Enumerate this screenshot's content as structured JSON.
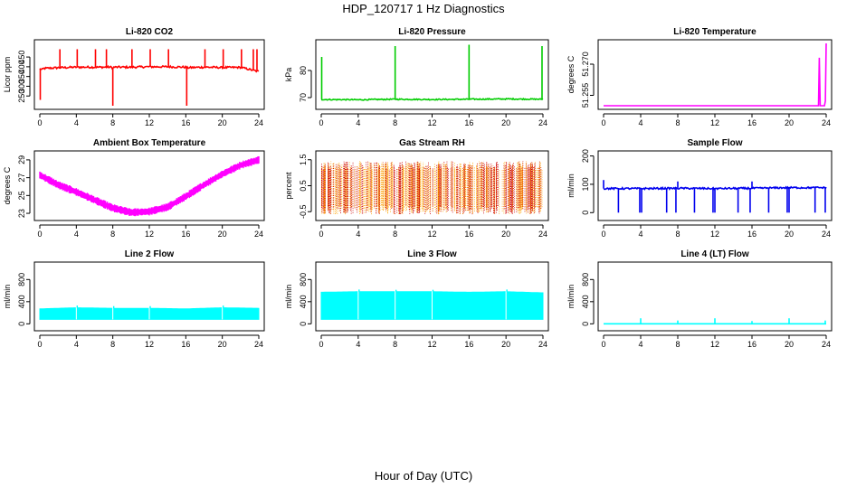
{
  "figure": {
    "title": "HDP_120717  1 Hz Diagnostics",
    "xlabel": "Hour of Day (UTC)"
  },
  "chart_data": [
    {
      "id": "co2",
      "type": "line",
      "title": "Li-820 CO2",
      "ylabel": "Licor ppm",
      "color": "#ff0000",
      "xlim": [
        0,
        24
      ],
      "xticks": [
        0,
        4,
        8,
        12,
        16,
        20,
        24
      ],
      "ylim": [
        200,
        520
      ],
      "yticks": [
        250,
        300,
        350,
        400,
        450
      ],
      "yticklabels": [
        "250",
        "300",
        "350",
        "400",
        "450"
      ],
      "pattern": "noisy",
      "series": [
        {
          "name": "CO2",
          "x": [
            0,
            0.2,
            0.5,
            2,
            4,
            6,
            7.9,
            8,
            8.1,
            10,
            12,
            14,
            16,
            16.1,
            18,
            20,
            22,
            24
          ],
          "y": [
            390,
            385,
            392,
            395,
            398,
            398,
            398,
            390,
            398,
            398,
            400,
            400,
            398,
            395,
            398,
            396,
            397,
            375
          ]
        }
      ],
      "spikes": [
        {
          "x": 0.05,
          "y": 230
        },
        {
          "x": 2.2,
          "y": 490
        },
        {
          "x": 4.1,
          "y": 490
        },
        {
          "x": 6.1,
          "y": 490
        },
        {
          "x": 7.3,
          "y": 490
        },
        {
          "x": 8.0,
          "y": 200
        },
        {
          "x": 10.1,
          "y": 490
        },
        {
          "x": 12.1,
          "y": 490
        },
        {
          "x": 14.1,
          "y": 490
        },
        {
          "x": 16.1,
          "y": 200
        },
        {
          "x": 18.1,
          "y": 490
        },
        {
          "x": 20.1,
          "y": 490
        },
        {
          "x": 22.1,
          "y": 490
        },
        {
          "x": 23.4,
          "y": 490
        },
        {
          "x": 23.8,
          "y": 490
        }
      ],
      "noise": 5
    },
    {
      "id": "pressure",
      "type": "line",
      "title": "Li-820 Pressure",
      "ylabel": "kPa",
      "color": "#00cc00",
      "xlim": [
        0,
        24
      ],
      "xticks": [
        0,
        4,
        8,
        12,
        16,
        20,
        24
      ],
      "ylim": [
        67,
        90
      ],
      "yticks": [
        70,
        80
      ],
      "yticklabels": [
        "70",
        "80"
      ],
      "pattern": "noisy",
      "series": [
        {
          "name": "Pressure",
          "x": [
            0,
            4,
            8,
            12,
            16,
            20,
            24
          ],
          "y": [
            69.3,
            69.2,
            69.4,
            69.3,
            69.4,
            69.5,
            69.4
          ]
        }
      ],
      "spikes": [
        {
          "x": 0.05,
          "y": 85
        },
        {
          "x": 8.0,
          "y": 89
        },
        {
          "x": 16.0,
          "y": 89.5
        },
        {
          "x": 23.9,
          "y": 89
        }
      ],
      "noise": 0.2
    },
    {
      "id": "temperature",
      "type": "line",
      "title": "Li-820 Temperature",
      "ylabel": "degrees C",
      "color": "#ff00ff",
      "xlim": [
        0,
        24
      ],
      "xticks": [
        0,
        4,
        8,
        12,
        16,
        20,
        24
      ],
      "ylim": [
        51.25,
        51.28
      ],
      "yticks": [
        51.255,
        51.27
      ],
      "yticklabels": [
        "51.255",
        "51.270"
      ],
      "pattern": "noisy",
      "series": [
        {
          "name": "Temperature",
          "x": [
            0,
            23.2,
            23.25,
            23.3,
            23.9,
            24
          ],
          "y": [
            51.25,
            51.25,
            51.28,
            51.25,
            51.25,
            51.28
          ]
        }
      ],
      "spikes": [],
      "noise": 0
    },
    {
      "id": "box_temp",
      "type": "line",
      "title": "Ambient Box Temperature",
      "ylabel": "degrees C",
      "color": "#ff00ff",
      "xlim": [
        0,
        24
      ],
      "xticks": [
        0,
        4,
        8,
        12,
        16,
        20,
        24
      ],
      "ylim": [
        22.6,
        29.6
      ],
      "yticks": [
        23,
        25,
        27,
        29
      ],
      "yticklabels": [
        "23",
        "25",
        "27",
        "29"
      ],
      "pattern": "band",
      "series": [
        {
          "name": "Box Temperature",
          "x": [
            0,
            2,
            4,
            6,
            8,
            10,
            12,
            14,
            16,
            18,
            20,
            22,
            24
          ],
          "y": [
            27.3,
            26.2,
            25.4,
            24.5,
            23.6,
            23.1,
            23.2,
            23.7,
            24.9,
            26.2,
            27.4,
            28.4,
            29.0
          ]
        }
      ],
      "band": 0.9
    },
    {
      "id": "rh",
      "type": "scatter",
      "title": "Gas Stream RH",
      "ylabel": "percent",
      "color": "#ffa500",
      "color2": "#cc0000",
      "xlim": [
        0,
        24
      ],
      "xticks": [
        0,
        4,
        8,
        12,
        16,
        20,
        24
      ],
      "ylim": [
        -0.7,
        1.7
      ],
      "yticks": [
        -0.5,
        0.5,
        1.5
      ],
      "yticklabels": [
        "-0.5",
        "0.5",
        "1.5"
      ],
      "pattern": "scatterband",
      "series": [
        {
          "name": "RH",
          "x": [
            0,
            24
          ],
          "y": [
            0.4,
            0.4
          ]
        }
      ],
      "yrange": [
        -0.6,
        1.45
      ]
    },
    {
      "id": "sample_flow",
      "type": "line",
      "title": "Sample Flow",
      "ylabel": "ml/min",
      "color": "#0000ee",
      "xlim": [
        0,
        24
      ],
      "xticks": [
        0,
        4,
        8,
        12,
        16,
        20,
        24
      ],
      "ylim": [
        -15,
        205
      ],
      "yticks": [
        0,
        100,
        200
      ],
      "yticklabels": [
        "0",
        "100",
        "200"
      ],
      "pattern": "noisy",
      "series": [
        {
          "name": "Sample Flow",
          "x": [
            0,
            4,
            8,
            12,
            16,
            20,
            24
          ],
          "y": [
            85,
            85,
            86,
            85,
            86,
            88,
            88
          ]
        }
      ],
      "spikes": [
        {
          "x": 0.0,
          "y": 115
        },
        {
          "x": 1.6,
          "y": 0
        },
        {
          "x": 3.9,
          "y": 0
        },
        {
          "x": 4.1,
          "y": 0
        },
        {
          "x": 6.8,
          "y": 0
        },
        {
          "x": 7.8,
          "y": 0
        },
        {
          "x": 8.0,
          "y": 110
        },
        {
          "x": 9.8,
          "y": 0
        },
        {
          "x": 11.8,
          "y": 0
        },
        {
          "x": 12.0,
          "y": 0
        },
        {
          "x": 14.5,
          "y": 0
        },
        {
          "x": 15.8,
          "y": 0
        },
        {
          "x": 16.0,
          "y": 110
        },
        {
          "x": 17.8,
          "y": 0
        },
        {
          "x": 19.8,
          "y": 0
        },
        {
          "x": 20.0,
          "y": 0
        },
        {
          "x": 22.8,
          "y": 0
        },
        {
          "x": 23.9,
          "y": 0
        }
      ],
      "noise": 3
    },
    {
      "id": "line2_flow",
      "type": "area",
      "title": "Line 2 Flow",
      "ylabel": "ml/min",
      "color": "#00ffff",
      "xlim": [
        0,
        24
      ],
      "xticks": [
        0,
        4,
        8,
        12,
        16,
        20,
        24
      ],
      "ylim": [
        -60,
        1050
      ],
      "yticks": [
        0,
        400,
        800
      ],
      "yticklabels": [
        "0",
        "400",
        "800"
      ],
      "pattern": "fill",
      "series": [
        {
          "name": "Line 2 Flow",
          "x": [
            0,
            4,
            8,
            12,
            16,
            20,
            24
          ],
          "y": [
            270,
            290,
            280,
            280,
            270,
            290,
            280
          ]
        }
      ],
      "base": 80,
      "spikes": [
        {
          "x": 4.0,
          "y": 330
        },
        {
          "x": 8.0,
          "y": 320
        },
        {
          "x": 12.0,
          "y": 320
        },
        {
          "x": 20.0,
          "y": 330
        }
      ]
    },
    {
      "id": "line3_flow",
      "type": "area",
      "title": "Line 3 Flow",
      "ylabel": "ml/min",
      "color": "#00ffff",
      "xlim": [
        0,
        24
      ],
      "xticks": [
        0,
        4,
        8,
        12,
        16,
        20,
        24
      ],
      "ylim": [
        -60,
        1050
      ],
      "yticks": [
        0,
        400,
        800
      ],
      "yticklabels": [
        "0",
        "400",
        "800"
      ],
      "pattern": "fill",
      "series": [
        {
          "name": "Line 3 Flow",
          "x": [
            0,
            4,
            8,
            12,
            16,
            20,
            24
          ],
          "y": [
            570,
            580,
            580,
            580,
            570,
            580,
            560
          ]
        }
      ],
      "base": 80,
      "spikes": [
        {
          "x": 4.0,
          "y": 620
        },
        {
          "x": 8.0,
          "y": 615
        },
        {
          "x": 12.0,
          "y": 615
        },
        {
          "x": 20.0,
          "y": 620
        }
      ]
    },
    {
      "id": "line4_flow",
      "type": "line",
      "title": "Line 4 (LT) Flow",
      "ylabel": "ml/min",
      "color": "#00ffff",
      "xlim": [
        0,
        24
      ],
      "xticks": [
        0,
        4,
        8,
        12,
        16,
        20,
        24
      ],
      "ylim": [
        -60,
        1050
      ],
      "yticks": [
        0,
        400,
        800
      ],
      "yticklabels": [
        "0",
        "400",
        "800"
      ],
      "pattern": "noisy",
      "series": [
        {
          "name": "Line 4 Flow",
          "x": [
            0,
            24
          ],
          "y": [
            0,
            0
          ]
        }
      ],
      "spikes": [
        {
          "x": 4.0,
          "y": 100
        },
        {
          "x": 8.0,
          "y": 60
        },
        {
          "x": 12.0,
          "y": 100
        },
        {
          "x": 16.0,
          "y": 50
        },
        {
          "x": 20.0,
          "y": 100
        },
        {
          "x": 23.9,
          "y": 60
        }
      ],
      "noise": 0
    }
  ]
}
